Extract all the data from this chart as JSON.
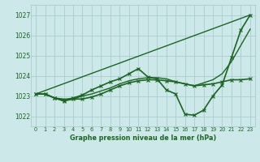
{
  "background_color": "#cce8e8",
  "grid_color": "#aacccc",
  "line_color": "#1a6620",
  "title": "Graphe pression niveau de la mer (hPa)",
  "xlim": [
    -0.5,
    23.5
  ],
  "ylim": [
    1021.5,
    1027.5
  ],
  "yticks": [
    1022,
    1023,
    1024,
    1025,
    1026,
    1027
  ],
  "xticks": [
    0,
    1,
    2,
    3,
    4,
    5,
    6,
    7,
    8,
    9,
    10,
    11,
    12,
    13,
    14,
    15,
    16,
    17,
    18,
    19,
    20,
    21,
    22,
    23
  ],
  "series": [
    {
      "x": [
        0,
        23
      ],
      "y": [
        1023.1,
        1027.0
      ],
      "marker": null,
      "linewidth": 1.0,
      "linestyle": "-"
    },
    {
      "x": [
        0,
        1,
        2,
        3,
        4,
        5,
        6,
        7,
        8,
        9,
        10,
        11,
        12,
        13,
        14,
        15,
        16,
        17,
        18,
        19,
        20,
        21,
        22,
        23
      ],
      "y": [
        1023.1,
        1023.1,
        1022.9,
        1022.8,
        1022.9,
        1023.05,
        1023.3,
        1023.5,
        1023.7,
        1023.85,
        1024.1,
        1024.35,
        1023.95,
        1023.85,
        1023.3,
        1023.1,
        1022.1,
        1022.05,
        1022.3,
        1023.0,
        1023.55,
        1024.9,
        1026.25,
        1027.0
      ],
      "marker": "x",
      "linewidth": 1.2,
      "linestyle": "-"
    },
    {
      "x": [
        0,
        1,
        2,
        3,
        4,
        5,
        6,
        7,
        8,
        9,
        10,
        11,
        12,
        13,
        14,
        15,
        16,
        17,
        18,
        19,
        20,
        21,
        22,
        23
      ],
      "y": [
        1023.1,
        1023.1,
        1022.9,
        1022.85,
        1022.85,
        1023.0,
        1023.1,
        1023.25,
        1023.4,
        1023.6,
        1023.75,
        1023.85,
        1023.9,
        1023.9,
        1023.85,
        1023.7,
        1023.6,
        1023.5,
        1023.65,
        1023.8,
        1024.1,
        1024.7,
        1025.5,
        1026.3
      ],
      "marker": null,
      "linewidth": 1.0,
      "linestyle": "-"
    },
    {
      "x": [
        0,
        1,
        2,
        3,
        4,
        5,
        6,
        7,
        8,
        9,
        10,
        11,
        12,
        13,
        14,
        15,
        16,
        17,
        18,
        19,
        20,
        21,
        22,
        23
      ],
      "y": [
        1023.1,
        1023.1,
        1022.9,
        1022.75,
        1022.85,
        1022.85,
        1022.95,
        1023.1,
        1023.3,
        1023.5,
        1023.65,
        1023.75,
        1023.8,
        1023.8,
        1023.75,
        1023.7,
        1023.6,
        1023.5,
        1023.55,
        1023.6,
        1023.7,
        1023.8,
        1023.8,
        1023.85
      ],
      "marker": "x",
      "linewidth": 1.2,
      "linestyle": "-"
    }
  ]
}
